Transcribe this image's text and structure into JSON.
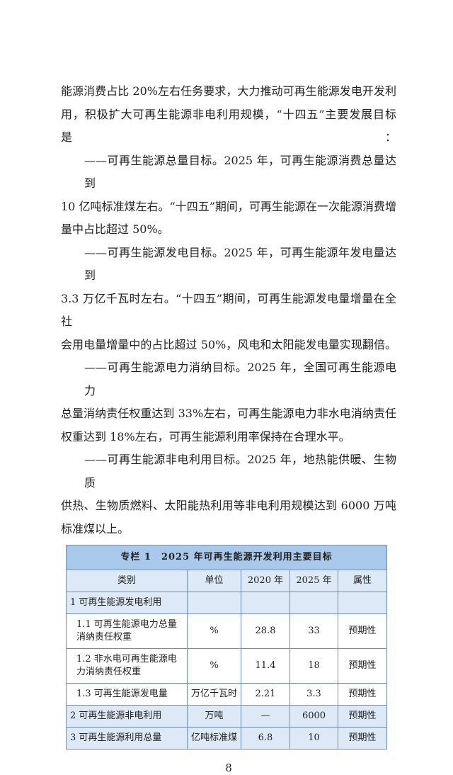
{
  "body_lines": [
    "能源消费占比 20%左右任务要求，大力推动可再生能源发电开发利",
    "用，积极扩大可再生能源非电利用规模，“十四五”主要发展目标是：",
    "——可再生能源总量目标。2025 年，可再生能源消费总量达到",
    "10 亿吨标准煤左右。“十四五”期间，可再生能源在一次能源消费增",
    "量中占比超过 50%。",
    "——可再生能源发电目标。2025 年，可再生能源年发电量达到",
    "3.3 万亿千瓦时左右。“十四五”期间，可再生能源发电量增量在全社",
    "会用电量增量中的占比超过 50%，风电和太阳能发电量实现翻倍。",
    "——可再生能源电力消纳目标。2025 年，全国可再生能源电力",
    "总量消纳责任权重达到 33%左右，可再生能源电力非水电消纳责任",
    "权重达到 18%左右，可再生能源利用率保持在合理水平。",
    "——可再生能源非电利用目标。2025 年，地热能供暖、生物质",
    "供热、生物质燃料、太阳能热利用等非电利用规模达到 6000 万吨",
    "标准煤以上。"
  ],
  "table": {
    "title": "专栏 1　2025 年可再生能源开发利用主要目标",
    "headers": [
      "类别",
      "单位",
      "2020 年",
      "2025 年",
      "属性"
    ],
    "rows": [
      [
        "1 可再生能源发电利用",
        "",
        "",
        "",
        ""
      ],
      [
        "1.1 可再生能源电力总量消纳责任权重",
        "%",
        "28.8",
        "33",
        "预期性"
      ],
      [
        "1.2 非水电可再生能源电力消纳责任权重",
        "%",
        "11.4",
        "18",
        "预期性"
      ],
      [
        "1.3 可再生能源发电量",
        "万亿千瓦时",
        "2.21",
        "3.3",
        "预期性"
      ],
      [
        "2 可再生能源非电利用",
        "万吨",
        "—",
        "6000",
        "预期性"
      ],
      [
        "3 可再生能源利用总量",
        "亿吨标准煤",
        "6.8",
        "10",
        "预期性"
      ]
    ]
  },
  "page_number": "8",
  "colors": {
    "table_title_bg": "#a9c9ea",
    "table_row_bg": "#dde9f6",
    "table_border": "#6d8fb5"
  }
}
